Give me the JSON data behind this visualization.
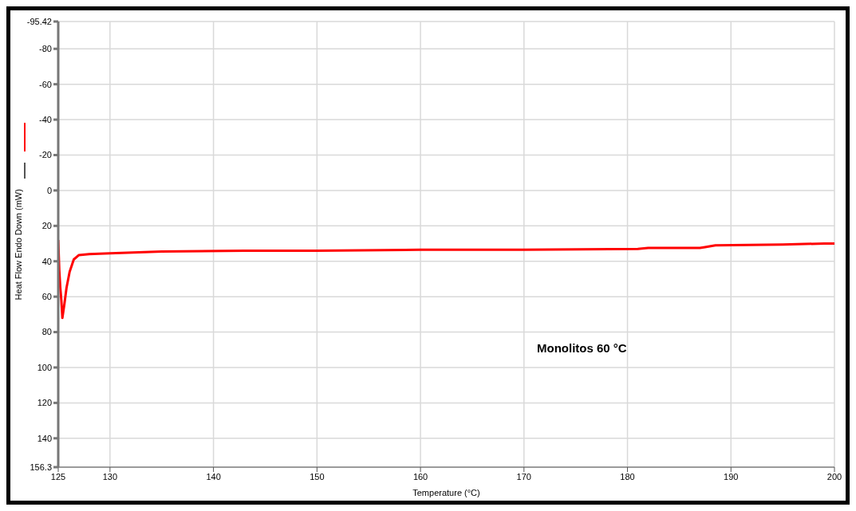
{
  "chart_data": {
    "type": "line",
    "xlabel": "Temperature (°C)",
    "ylabel": "Heat Flow Endo Down (mW)",
    "annotations": [
      "Monolitos 60 °C"
    ],
    "x": [
      125,
      125.1,
      125.2,
      125.3,
      125.4,
      125.6,
      125.8,
      126.1,
      126.5,
      127,
      128,
      130,
      135,
      143,
      150,
      160,
      170,
      181,
      182,
      187,
      187.5,
      188.5,
      195,
      199,
      200
    ],
    "series": [
      {
        "color": "#ff0000",
        "values": [
          28,
          45,
          55,
          62,
          72,
          64,
          55,
          46,
          39,
          36.5,
          36,
          35.5,
          34.5,
          34,
          34,
          33.5,
          33.5,
          33,
          32.5,
          32.5,
          32,
          31,
          30.5,
          30,
          30
        ]
      }
    ],
    "xlim": [
      125,
      200
    ],
    "xticks": [
      125,
      130,
      140,
      150,
      160,
      170,
      180,
      190,
      200
    ],
    "ylim": [
      156.3,
      -95.42
    ],
    "yticks": [
      -95.42,
      -80,
      -60,
      -40,
      -20,
      0,
      20,
      40,
      60,
      80,
      100,
      120,
      140,
      156.3
    ],
    "grid": true,
    "marker": "none",
    "line_style": "solid"
  }
}
